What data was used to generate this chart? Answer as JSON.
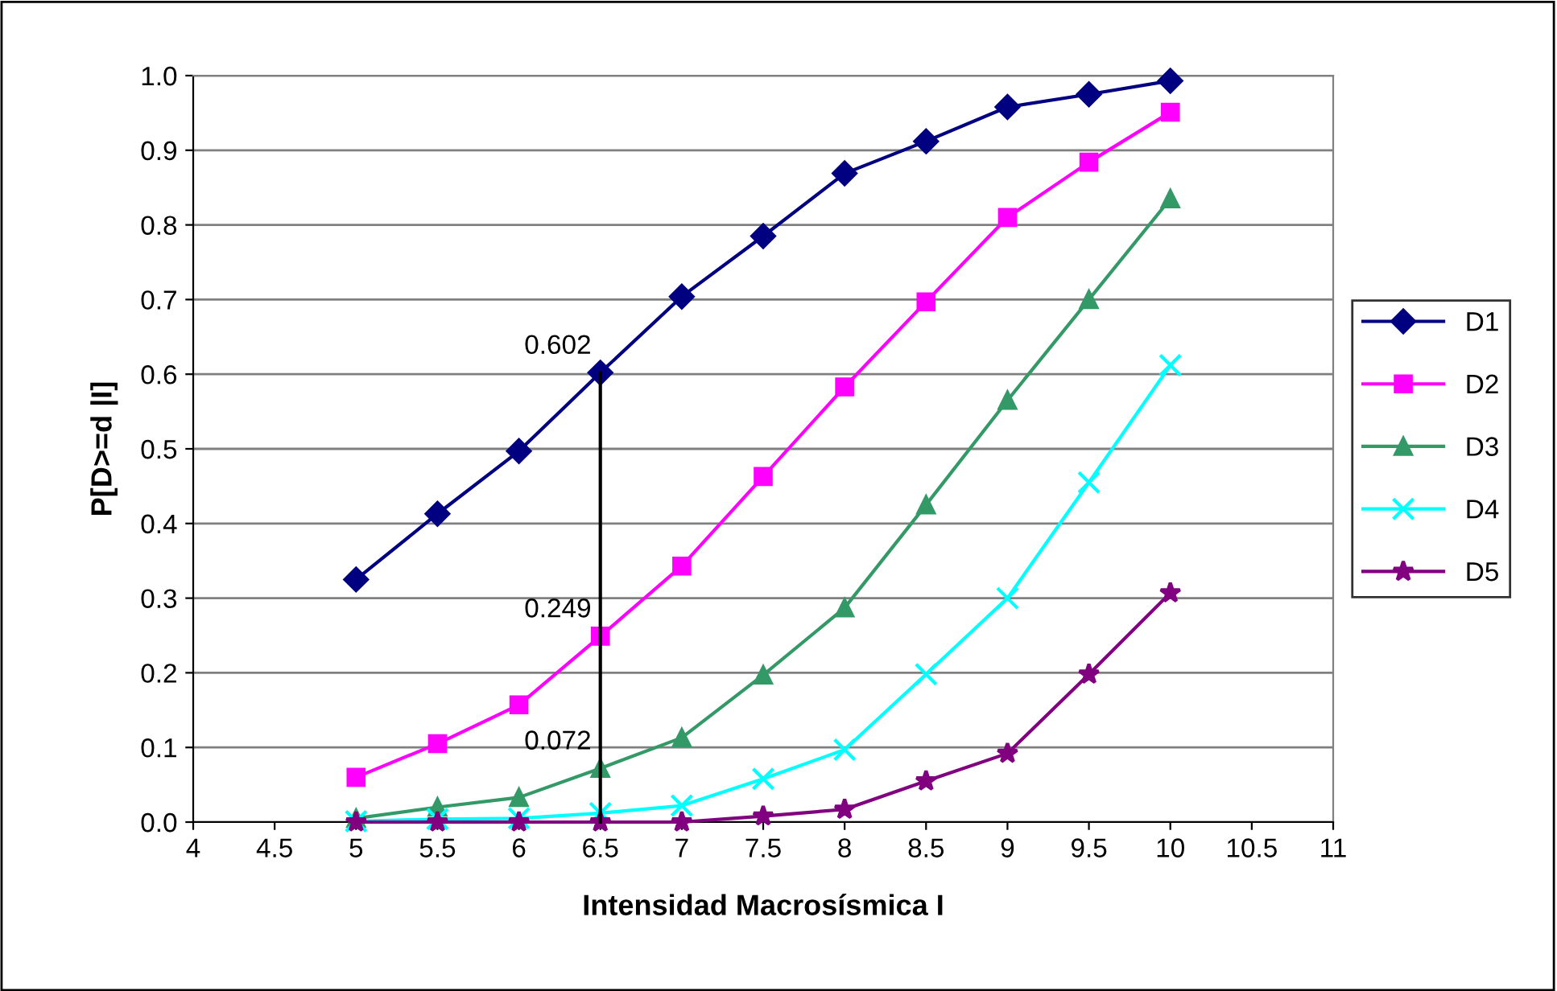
{
  "chart_data": {
    "type": "line",
    "xlabel": "Intensidad Macrosísmica I",
    "ylabel": "P[D>=d |I]",
    "x": [
      5,
      5.5,
      6,
      6.5,
      7,
      7.5,
      8,
      8.5,
      9,
      9.5,
      10
    ],
    "xlim": [
      4,
      11
    ],
    "xticks": [
      4,
      4.5,
      5,
      5.5,
      6,
      6.5,
      7,
      7.5,
      8,
      8.5,
      9,
      9.5,
      10,
      10.5,
      11
    ],
    "ylim": [
      0,
      1
    ],
    "yticks": [
      {
        "value": 0,
        "label": "0.0"
      },
      {
        "value": 0.1,
        "label": "0.1"
      },
      {
        "value": 0.2,
        "label": "0.2"
      },
      {
        "value": 0.3,
        "label": "0.3"
      },
      {
        "value": 0.4,
        "label": "0.4"
      },
      {
        "value": 0.5,
        "label": "0.5"
      },
      {
        "value": 0.6,
        "label": "0.6"
      },
      {
        "value": 0.7,
        "label": "0.7"
      },
      {
        "value": 0.8,
        "label": "0.8"
      },
      {
        "value": 0.9,
        "label": "0.9"
      },
      {
        "value": 1,
        "label": "1.0"
      }
    ],
    "grid": "y",
    "legend": "right",
    "line_style": "solid",
    "series": [
      {
        "name": "D1",
        "color": "#000080",
        "marker": "diamond",
        "values": [
          0.325,
          0.413,
          0.497,
          0.602,
          0.704,
          0.785,
          0.869,
          0.912,
          0.958,
          0.975,
          0.993
        ],
        "value_labels": [
          null,
          null,
          null,
          "0.602",
          null,
          null,
          null,
          null,
          null,
          null,
          null
        ]
      },
      {
        "name": "D2",
        "color": "#ff00ff",
        "marker": "square",
        "values": [
          0.06,
          0.105,
          0.157,
          0.249,
          0.343,
          0.463,
          0.583,
          0.697,
          0.81,
          0.884,
          0.951
        ],
        "value_labels": [
          null,
          null,
          null,
          "0.249",
          null,
          null,
          null,
          null,
          null,
          null,
          null
        ]
      },
      {
        "name": "D3",
        "color": "#339966",
        "marker": "triangle",
        "values": [
          0.005,
          0.02,
          0.033,
          0.072,
          0.113,
          0.197,
          0.287,
          0.425,
          0.565,
          0.7,
          0.835
        ],
        "value_labels": [
          null,
          null,
          null,
          "0.072",
          null,
          null,
          null,
          null,
          null,
          null,
          null
        ]
      },
      {
        "name": "D4",
        "color": "#00ffff",
        "marker": "cross",
        "values": [
          0.001,
          0.004,
          0.005,
          0.012,
          0.022,
          0.058,
          0.097,
          0.198,
          0.3,
          0.455,
          0.612
        ]
      },
      {
        "name": "D5",
        "color": "#800080",
        "marker": "star",
        "values": [
          0,
          0,
          0,
          0,
          0,
          0.008,
          0.017,
          0.055,
          0.092,
          0.198,
          0.307
        ]
      },
      {
        "color": "#000000",
        "marker": "none",
        "x": [
          6.5,
          6.5
        ],
        "values": [
          0,
          0.602
        ]
      }
    ]
  }
}
